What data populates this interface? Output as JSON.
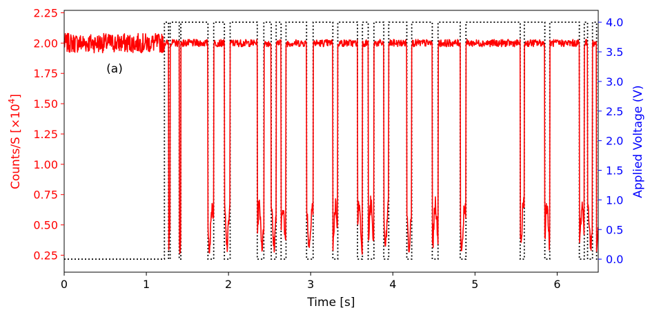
{
  "chart_data": {
    "type": "line",
    "annotation": "(a)",
    "xlabel": "Time [s]",
    "ylabel_left_base": "Counts/S [×10",
    "ylabel_left_exp": "4",
    "ylabel_left_suffix": "]",
    "ylabel_right": "Applied Voltage (V)",
    "xlim": [
      0,
      6.5
    ],
    "ylim_left": [
      0.11,
      2.27
    ],
    "ylim_right": [
      -0.22,
      4.2
    ],
    "x_ticks": [
      0,
      1,
      2,
      3,
      4,
      5,
      6
    ],
    "y_left_ticks": [
      0.25,
      0.5,
      0.75,
      1.0,
      1.25,
      1.5,
      1.75,
      2.0,
      2.25
    ],
    "y_left_tick_labels": [
      "0.25",
      "0.50",
      "0.75",
      "1.00",
      "1.25",
      "1.50",
      "1.75",
      "2.00",
      "2.25"
    ],
    "y_right_ticks": [
      0.0,
      0.5,
      1.0,
      1.5,
      2.0,
      2.5,
      3.0,
      3.5,
      4.0
    ],
    "y_right_tick_labels": [
      "0.0",
      "0.5",
      "1.0",
      "1.5",
      "2.0",
      "2.5",
      "3.0",
      "3.5",
      "4.0"
    ],
    "colors": {
      "counts": "#ff0000",
      "voltage": "#000000",
      "left_axis": "#ff0000",
      "right_axis": "#0000ff"
    },
    "voltage_levels": {
      "low": 0.0,
      "high": 4.0
    },
    "voltage_high_intervals": [
      [
        1.22,
        1.27
      ],
      [
        1.29,
        1.4
      ],
      [
        1.42,
        1.75
      ],
      [
        1.82,
        1.95
      ],
      [
        2.02,
        2.35
      ],
      [
        2.43,
        2.52
      ],
      [
        2.58,
        2.64
      ],
      [
        2.7,
        2.95
      ],
      [
        3.03,
        3.27
      ],
      [
        3.33,
        3.57
      ],
      [
        3.63,
        3.7
      ],
      [
        3.77,
        3.89
      ],
      [
        3.95,
        4.17
      ],
      [
        4.23,
        4.48
      ],
      [
        4.55,
        4.82
      ],
      [
        4.89,
        5.55
      ],
      [
        5.6,
        5.85
      ],
      [
        5.91,
        6.27
      ],
      [
        6.33,
        6.37
      ],
      [
        6.43,
        6.48
      ]
    ],
    "counts_model": {
      "high_level": 2.0,
      "low_level": 0.5,
      "low_oscillation_amplitude": 0.17,
      "initial_noise": 0.05,
      "noise": 0.03
    }
  }
}
